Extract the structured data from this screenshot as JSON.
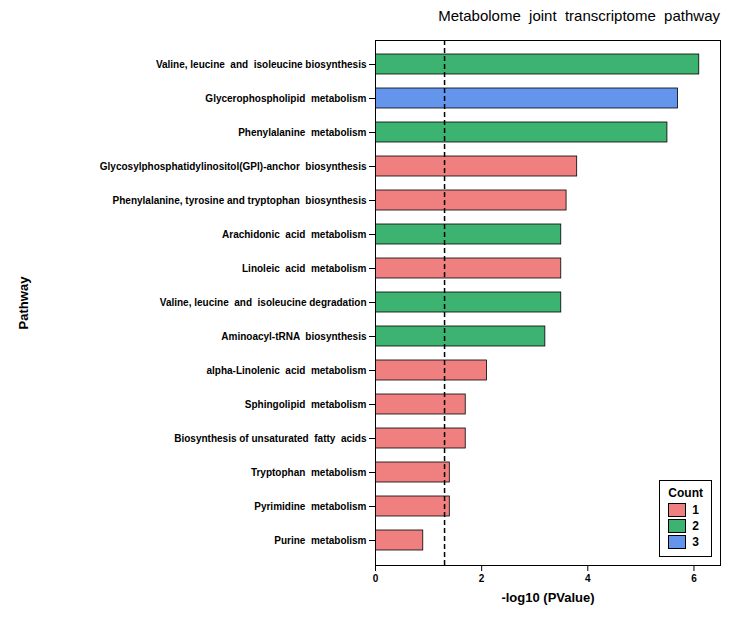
{
  "chart_data": {
    "type": "bar",
    "orientation": "horizontal",
    "title": "Metabolome  joint  transcriptome  pathway",
    "xlabel": "-log10 (PValue)",
    "ylabel": "Pathway",
    "categories": [
      "Valine, leucine  and  isoleucine biosynthesis",
      "Glycerophospholipid  metabolism",
      "Phenylalanine  metabolism",
      "Glycosylphosphatidylinositol(GPI)-anchor  biosynthesis",
      "Phenylalanine, tyrosine and tryptophan  biosynthesis",
      "Arachidonic  acid  metabolism",
      "Linoleic  acid  metabolism",
      "Valine, leucine  and  isoleucine degradation",
      "Aminoacyl-tRNA  biosynthesis",
      "alpha-Linolenic  acid  metabolism",
      "Sphingolipid  metabolism",
      "Biosynthesis of unsaturated  fatty  acids",
      "Tryptophan  metabolism",
      "Pyrimidine  metabolism",
      "Purine  metabolism"
    ],
    "values": [
      6.1,
      5.7,
      5.5,
      3.8,
      3.6,
      3.5,
      3.5,
      3.5,
      3.2,
      2.1,
      1.7,
      1.7,
      1.4,
      1.4,
      0.9
    ],
    "colors": [
      "#3CB371",
      "#6495ED",
      "#3CB371",
      "#F08080",
      "#F08080",
      "#3CB371",
      "#F08080",
      "#3CB371",
      "#3CB371",
      "#F08080",
      "#F08080",
      "#F08080",
      "#F08080",
      "#F08080",
      "#F08080"
    ],
    "threshold": 1.301,
    "xlim": [
      0,
      6.5
    ],
    "xticks": [
      0,
      2,
      4,
      6
    ],
    "grid": false,
    "legend": "lower right",
    "legend_title": "Count",
    "legend_items": [
      {
        "label": "1",
        "color": "#F08080"
      },
      {
        "label": "2",
        "color": "#3CB371"
      },
      {
        "label": "3",
        "color": "#6495ED"
      }
    ]
  }
}
